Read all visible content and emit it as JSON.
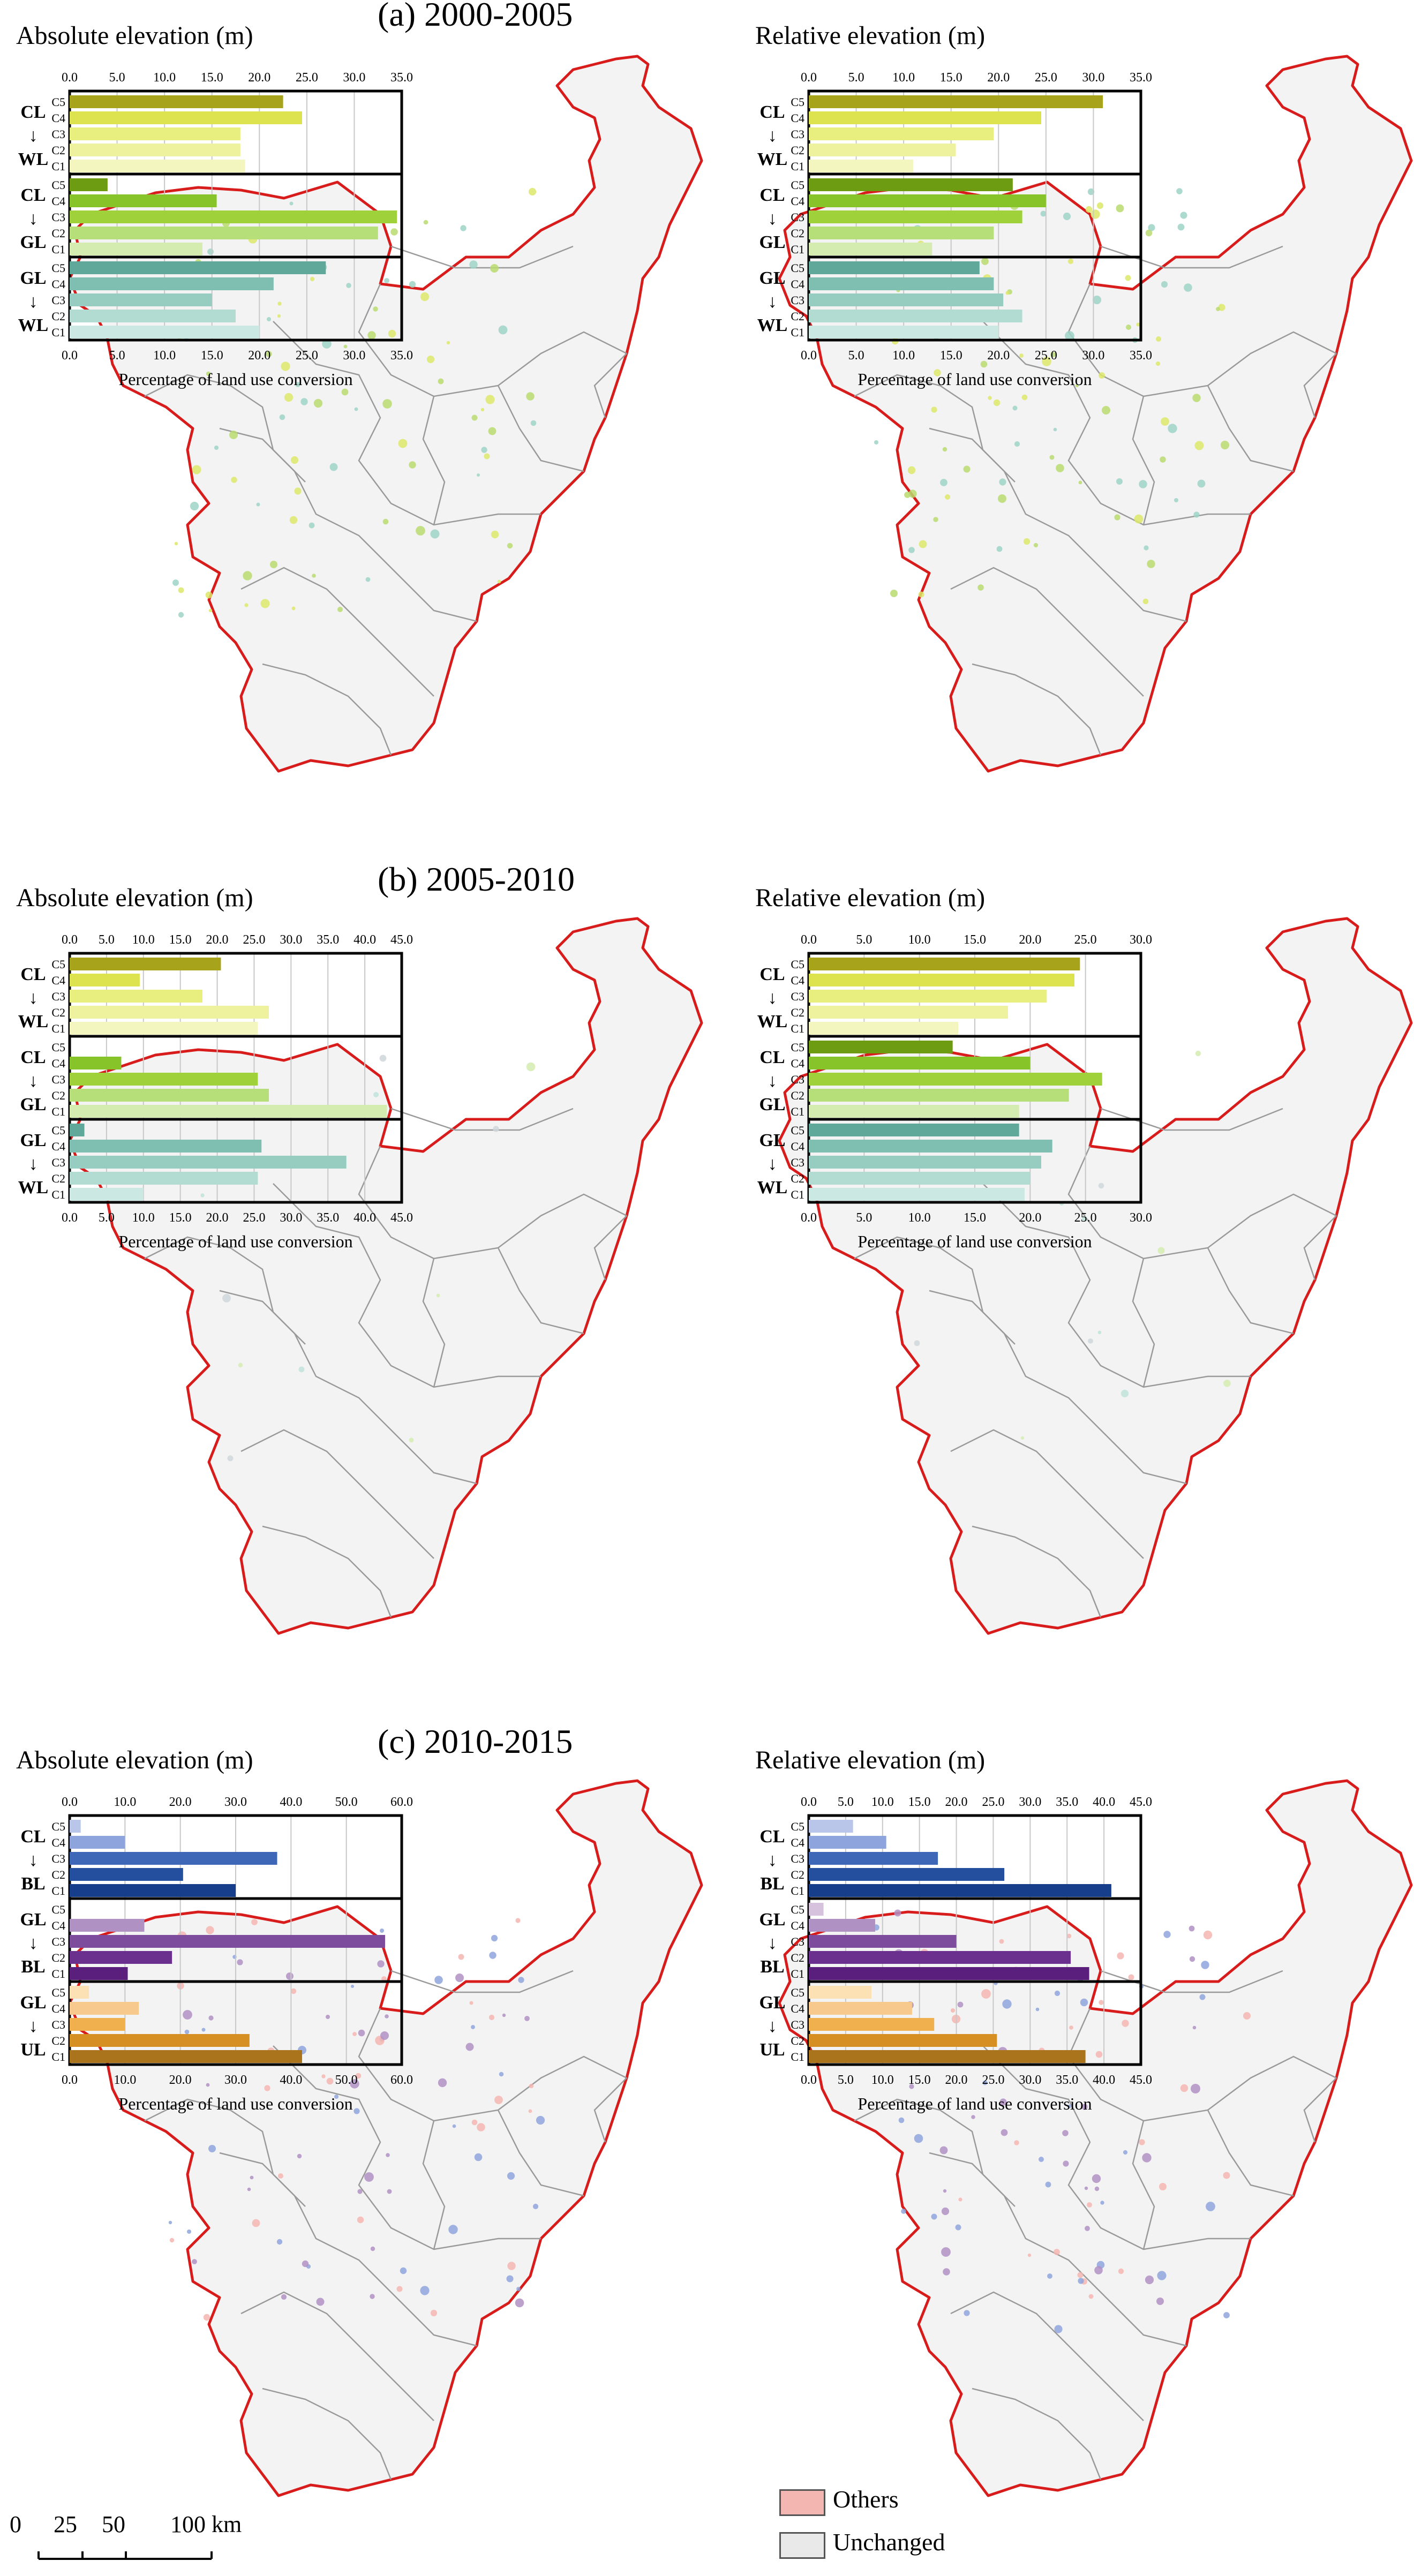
{
  "colors": {
    "boundary": "#d81b1b",
    "inner_boundary": "#9a9a9a",
    "land_fill": "#f3f3f3",
    "others": "#f4b6b0",
    "unchanged": "#e9e9e9"
  },
  "panels": [
    {
      "title": "(a) 2000-2005"
    },
    {
      "title": "(b) 2005-2010"
    },
    {
      "title": "(c) 2010-2015"
    }
  ],
  "legend": {
    "others": "Others",
    "unchanged": "Unchanged"
  },
  "scale_bar": {
    "labels": [
      "0",
      "25",
      "50",
      "100 km"
    ]
  },
  "chart_data": [
    {
      "type": "bar",
      "title": "Absolute elevation (m)",
      "xlabel": "Percentage of land use conversion",
      "xlim": [
        0,
        35
      ],
      "ticks": [
        "0.0",
        "5.0",
        "10.0",
        "15.0",
        "20.0",
        "25.0",
        "30.0",
        "35.0"
      ],
      "categories": [
        "C5",
        "C4",
        "C3",
        "C2",
        "C1"
      ],
      "groups": [
        {
          "label": [
            "CL",
            "↓",
            "WL"
          ],
          "colors": [
            "#a7a41b",
            "#dde34f",
            "#e9ef7f",
            "#eef29f",
            "#f3f6bf"
          ],
          "values": [
            22.5,
            24.5,
            18.0,
            18.0,
            18.5
          ]
        },
        {
          "label": [
            "CL",
            "↓",
            "GL"
          ],
          "colors": [
            "#6d9b12",
            "#87c42a",
            "#9fd13b",
            "#b6df7a",
            "#d5ecb1"
          ],
          "values": [
            4.0,
            15.5,
            34.5,
            32.5,
            14.0
          ]
        },
        {
          "label": [
            "GL",
            "↓",
            "WL"
          ],
          "colors": [
            "#5fa89a",
            "#7fbfb2",
            "#97ccc1",
            "#b2dbd2",
            "#cce8e2"
          ],
          "values": [
            27.0,
            21.5,
            15.0,
            17.5,
            20.0
          ]
        }
      ]
    },
    {
      "type": "bar",
      "title": "Relative elevation (m)",
      "xlabel": "Percentage of land use conversion",
      "xlim": [
        0,
        35
      ],
      "ticks": [
        "0.0",
        "5.0",
        "10.0",
        "15.0",
        "20.0",
        "25.0",
        "30.0",
        "35.0"
      ],
      "categories": [
        "C5",
        "C4",
        "C3",
        "C2",
        "C1"
      ],
      "groups": [
        {
          "label": [
            "CL",
            "↓",
            "WL"
          ],
          "colors": [
            "#a7a41b",
            "#dde34f",
            "#e9ef7f",
            "#eef29f",
            "#f3f6bf"
          ],
          "values": [
            31.0,
            24.5,
            19.5,
            15.5,
            11.0
          ]
        },
        {
          "label": [
            "CL",
            "↓",
            "GL"
          ],
          "colors": [
            "#6d9b12",
            "#87c42a",
            "#9fd13b",
            "#b6df7a",
            "#d5ecb1"
          ],
          "values": [
            21.5,
            25.0,
            22.5,
            19.5,
            13.0
          ]
        },
        {
          "label": [
            "GL",
            "↓",
            "WL"
          ],
          "colors": [
            "#5fa89a",
            "#7fbfb2",
            "#97ccc1",
            "#b2dbd2",
            "#cce8e2"
          ],
          "values": [
            18.0,
            19.5,
            20.5,
            22.5,
            20.0
          ]
        }
      ]
    },
    {
      "type": "bar",
      "title": "Absolute elevation (m)",
      "xlabel": "Percentage of land use conversion",
      "xlim": [
        0,
        45
      ],
      "ticks": [
        "0.0",
        "5.0",
        "10.0",
        "15.0",
        "20.0",
        "25.0",
        "30.0",
        "35.0",
        "40.0",
        "45.0"
      ],
      "categories": [
        "C5",
        "C4",
        "C3",
        "C2",
        "C1"
      ],
      "groups": [
        {
          "label": [
            "CL",
            "↓",
            "WL"
          ],
          "colors": [
            "#a7a41b",
            "#dde34f",
            "#e9ef7f",
            "#eef29f",
            "#f3f6bf"
          ],
          "values": [
            20.5,
            9.5,
            18.0,
            27.0,
            25.5
          ]
        },
        {
          "label": [
            "CL",
            "↓",
            "GL"
          ],
          "colors": [
            "#6d9b12",
            "#87c42a",
            "#9fd13b",
            "#b6df7a",
            "#d5ecb1"
          ],
          "values": [
            0.0,
            7.0,
            25.5,
            27.0,
            43.0
          ]
        },
        {
          "label": [
            "GL",
            "↓",
            "WL"
          ],
          "colors": [
            "#5fa89a",
            "#7fbfb2",
            "#97ccc1",
            "#b2dbd2",
            "#cce8e2"
          ],
          "values": [
            2.0,
            26.0,
            37.5,
            25.5,
            10.0
          ]
        }
      ]
    },
    {
      "type": "bar",
      "title": "Relative elevation (m)",
      "xlabel": "Percentage of land use conversion",
      "xlim": [
        0,
        30
      ],
      "ticks": [
        "0.0",
        "5.0",
        "10.0",
        "15.0",
        "20.0",
        "25.0",
        "30.0"
      ],
      "categories": [
        "C5",
        "C4",
        "C3",
        "C2",
        "C1"
      ],
      "groups": [
        {
          "label": [
            "CL",
            "↓",
            "WL"
          ],
          "colors": [
            "#a7a41b",
            "#dde34f",
            "#e9ef7f",
            "#eef29f",
            "#f3f6bf"
          ],
          "values": [
            24.5,
            24.0,
            21.5,
            18.0,
            13.5
          ]
        },
        {
          "label": [
            "CL",
            "↓",
            "GL"
          ],
          "colors": [
            "#6d9b12",
            "#87c42a",
            "#9fd13b",
            "#b6df7a",
            "#d5ecb1"
          ],
          "values": [
            13.0,
            20.0,
            26.5,
            23.5,
            19.0
          ]
        },
        {
          "label": [
            "GL",
            "↓",
            "WL"
          ],
          "colors": [
            "#5fa89a",
            "#7fbfb2",
            "#97ccc1",
            "#b2dbd2",
            "#cce8e2"
          ],
          "values": [
            19.0,
            22.0,
            21.0,
            20.0,
            19.5
          ]
        }
      ]
    },
    {
      "type": "bar",
      "title": "Absolute elevation (m)",
      "xlabel": "Percentage of land use conversion",
      "xlim": [
        0,
        60
      ],
      "ticks": [
        "0.0",
        "10.0",
        "20.0",
        "30.0",
        "40.0",
        "50.0",
        "60.0"
      ],
      "categories": [
        "C5",
        "C4",
        "C3",
        "C2",
        "C1"
      ],
      "groups": [
        {
          "label": [
            "CL",
            "↓",
            "BL"
          ],
          "colors": [
            "#b9c6ea",
            "#8ea4dd",
            "#3f67b8",
            "#244f9f",
            "#163e8b"
          ],
          "values": [
            2.0,
            10.0,
            37.5,
            20.5,
            30.0
          ]
        },
        {
          "label": [
            "GL",
            "↓",
            "BL"
          ],
          "colors": [
            "#d7c2dd",
            "#b091c4",
            "#7d4c9c",
            "#6b2f8d",
            "#5a1f7d"
          ],
          "values": [
            0.0,
            13.5,
            57.0,
            18.5,
            10.5
          ]
        },
        {
          "label": [
            "GL",
            "↓",
            "UL"
          ],
          "colors": [
            "#fbe1b3",
            "#f8c98d",
            "#f0b04d",
            "#d68f22",
            "#a9741c"
          ],
          "values": [
            3.5,
            12.5,
            10.0,
            32.5,
            42.0
          ]
        }
      ]
    },
    {
      "type": "bar",
      "title": "Relative elevation (m)",
      "xlabel": "Percentage of land use conversion",
      "xlim": [
        0,
        45
      ],
      "ticks": [
        "0.0",
        "5.0",
        "10.0",
        "15.0",
        "20.0",
        "25.0",
        "30.0",
        "35.0",
        "40.0",
        "45.0"
      ],
      "categories": [
        "C5",
        "C4",
        "C3",
        "C2",
        "C1"
      ],
      "groups": [
        {
          "label": [
            "CL",
            "↓",
            "BL"
          ],
          "colors": [
            "#b9c6ea",
            "#8ea4dd",
            "#3f67b8",
            "#244f9f",
            "#163e8b"
          ],
          "values": [
            6.0,
            10.5,
            17.5,
            26.5,
            41.0
          ]
        },
        {
          "label": [
            "GL",
            "↓",
            "BL"
          ],
          "colors": [
            "#d7c2dd",
            "#b091c4",
            "#7d4c9c",
            "#6b2f8d",
            "#5a1f7d"
          ],
          "values": [
            2.0,
            9.0,
            20.0,
            35.5,
            38.0
          ]
        },
        {
          "label": [
            "GL",
            "↓",
            "UL"
          ],
          "colors": [
            "#fbe1b3",
            "#f8c98d",
            "#f0b04d",
            "#d68f22",
            "#a9741c"
          ],
          "values": [
            8.5,
            14.0,
            17.0,
            25.5,
            37.5
          ]
        }
      ]
    }
  ]
}
